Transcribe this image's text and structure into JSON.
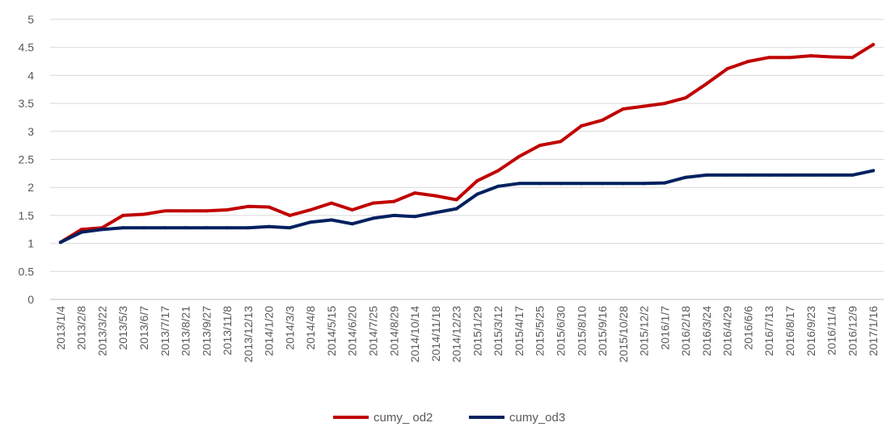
{
  "chart_data": {
    "type": "line",
    "title": "",
    "xlabel": "",
    "ylabel": "",
    "ylim": [
      0,
      5
    ],
    "yticks": [
      "0",
      "0.5",
      "1",
      "1.5",
      "2",
      "2.5",
      "3",
      "3.5",
      "4",
      "4.5",
      "5"
    ],
    "grid": "horizontal",
    "legend_position": "bottom",
    "x": [
      "2013/1/4",
      "2013/2/8",
      "2013/3/22",
      "2013/5/3",
      "2013/6/7",
      "2013/7/17",
      "2013/8/21",
      "2013/9/27",
      "2013/11/8",
      "2013/12/13",
      "2014/1/20",
      "2014/3/3",
      "2014/4/8",
      "2014/5/15",
      "2014/6/20",
      "2014/7/25",
      "2014/8/29",
      "2014/10/14",
      "2014/11/18",
      "2014/12/23",
      "2015/1/29",
      "2015/3/12",
      "2015/4/17",
      "2015/5/25",
      "2015/6/30",
      "2015/8/10",
      "2015/9/16",
      "2015/10/28",
      "2015/12/2",
      "2016/1/7",
      "2016/2/18",
      "2016/3/24",
      "2016/4/29",
      "2016/6/6",
      "2016/7/13",
      "2016/8/17",
      "2016/9/23",
      "2016/11/4",
      "2016/12/9",
      "2017/1/16"
    ],
    "series": [
      {
        "name": "cumy_ od2",
        "color": "#C00000",
        "values": [
          1.02,
          1.25,
          1.28,
          1.5,
          1.52,
          1.58,
          1.58,
          1.58,
          1.6,
          1.66,
          1.65,
          1.5,
          1.6,
          1.72,
          1.6,
          1.72,
          1.75,
          1.9,
          1.85,
          1.78,
          2.12,
          2.3,
          2.55,
          2.75,
          2.82,
          3.1,
          3.2,
          3.4,
          3.45,
          3.5,
          3.6,
          3.85,
          4.12,
          4.25,
          4.32,
          4.32,
          4.35,
          4.33,
          4.32,
          4.55
        ]
      },
      {
        "name": "cumy_od3",
        "color": "#002060",
        "values": [
          1.02,
          1.2,
          1.25,
          1.28,
          1.28,
          1.28,
          1.28,
          1.28,
          1.28,
          1.28,
          1.3,
          1.28,
          1.38,
          1.42,
          1.35,
          1.45,
          1.5,
          1.48,
          1.55,
          1.62,
          1.88,
          2.02,
          2.07,
          2.07,
          2.07,
          2.07,
          2.07,
          2.07,
          2.07,
          2.08,
          2.18,
          2.22,
          2.22,
          2.22,
          2.22,
          2.22,
          2.22,
          2.22,
          2.22,
          2.3
        ]
      }
    ]
  }
}
